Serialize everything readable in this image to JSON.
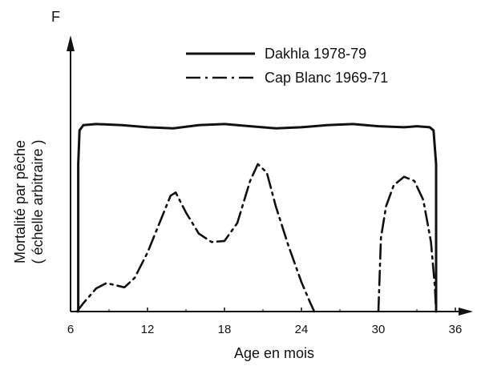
{
  "chart_data": {
    "type": "line",
    "title": "",
    "yaxis_letter": "F",
    "xlabel": "Age en mois",
    "ylabel_line1": "Mortalité par pêche",
    "ylabel_line2": "( échelle arbitraire )",
    "xlim": [
      6,
      39
    ],
    "ylim": [
      0,
      1
    ],
    "xticks": [
      6,
      12,
      18,
      24,
      30,
      36
    ],
    "xtick_labels": [
      "6",
      "12",
      "18",
      "24",
      "30",
      "36"
    ],
    "grid": false,
    "legend_position": "top-right",
    "color": "#111111",
    "series": [
      {
        "name": "Dakhla 1978-79",
        "style": "solid",
        "segments": [
          [
            [
              6.6,
              0
            ],
            [
              6.6,
              0.7
            ],
            [
              6.7,
              0.86
            ],
            [
              7,
              0.885
            ],
            [
              8,
              0.89
            ],
            [
              10,
              0.885
            ],
            [
              12,
              0.875
            ],
            [
              14,
              0.87
            ],
            [
              16,
              0.885
            ],
            [
              18,
              0.89
            ],
            [
              20,
              0.88
            ],
            [
              22,
              0.87
            ],
            [
              24,
              0.875
            ],
            [
              26,
              0.885
            ],
            [
              28,
              0.89
            ],
            [
              30,
              0.88
            ],
            [
              32,
              0.875
            ],
            [
              33,
              0.88
            ],
            [
              34,
              0.875
            ],
            [
              34.3,
              0.86
            ],
            [
              34.5,
              0.7
            ],
            [
              34.5,
              0
            ]
          ]
        ]
      },
      {
        "name": "Cap Blanc 1969-71",
        "style": "dash-dot",
        "segments": [
          [
            [
              6.5,
              0
            ],
            [
              7,
              0.04
            ],
            [
              8,
              0.11
            ],
            [
              8.8,
              0.135
            ],
            [
              9.5,
              0.125
            ],
            [
              10.2,
              0.115
            ],
            [
              11,
              0.16
            ],
            [
              12,
              0.28
            ],
            [
              13,
              0.43
            ],
            [
              13.8,
              0.55
            ],
            [
              14.2,
              0.565
            ],
            [
              15,
              0.47
            ],
            [
              16,
              0.37
            ],
            [
              17,
              0.33
            ],
            [
              18,
              0.335
            ],
            [
              19,
              0.42
            ],
            [
              20,
              0.62
            ],
            [
              20.6,
              0.7
            ],
            [
              21.3,
              0.66
            ],
            [
              22,
              0.5
            ],
            [
              23,
              0.31
            ],
            [
              24,
              0.14
            ],
            [
              24.7,
              0.04
            ],
            [
              25,
              0
            ]
          ],
          [
            [
              30,
              0
            ],
            [
              30.2,
              0.35
            ],
            [
              30.6,
              0.5
            ],
            [
              31.2,
              0.6
            ],
            [
              32,
              0.64
            ],
            [
              32.8,
              0.62
            ],
            [
              33.5,
              0.53
            ],
            [
              34.1,
              0.33
            ],
            [
              34.4,
              0.12
            ],
            [
              34.5,
              0
            ]
          ]
        ]
      }
    ]
  }
}
